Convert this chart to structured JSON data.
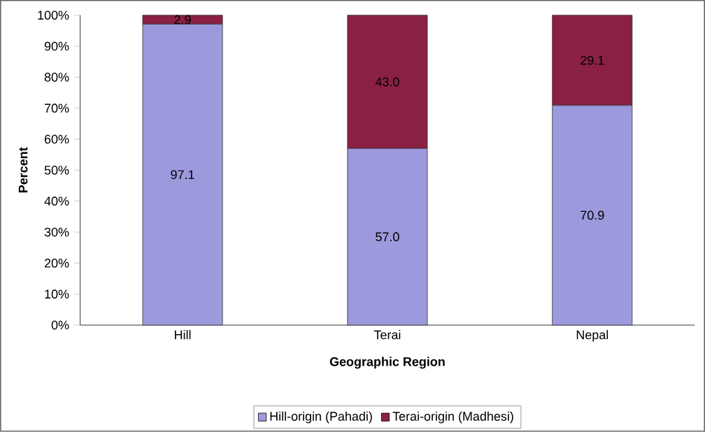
{
  "chart_data": {
    "type": "bar",
    "stacked": true,
    "xlabel": "Geographic Region",
    "ylabel": "Percent",
    "categories": [
      "Hill",
      "Terai",
      "Nepal"
    ],
    "series": [
      {
        "name": "Hill-origin (Pahadi)",
        "color": "#9c99dc",
        "values": [
          97.1,
          57.0,
          70.9
        ],
        "value_labels": [
          "97.1",
          "57.0",
          "70.9"
        ]
      },
      {
        "name": "Terai-origin (Madhesi)",
        "color": "#8a2142",
        "values": [
          2.9,
          43.0,
          29.1
        ],
        "value_labels": [
          "2.9",
          "43.0",
          "29.1"
        ]
      }
    ],
    "ylim": [
      0,
      100
    ],
    "yticks": [
      {
        "value": 0,
        "label": "0%"
      },
      {
        "value": 10,
        "label": "10%"
      },
      {
        "value": 20,
        "label": "20%"
      },
      {
        "value": 30,
        "label": "30%"
      },
      {
        "value": 40,
        "label": "40%"
      },
      {
        "value": 50,
        "label": "50%"
      },
      {
        "value": 60,
        "label": "60%"
      },
      {
        "value": 70,
        "label": "70%"
      },
      {
        "value": 80,
        "label": "80%"
      },
      {
        "value": 90,
        "label": "90%"
      },
      {
        "value": 100,
        "label": "100%"
      }
    ],
    "legend": "bottom"
  }
}
